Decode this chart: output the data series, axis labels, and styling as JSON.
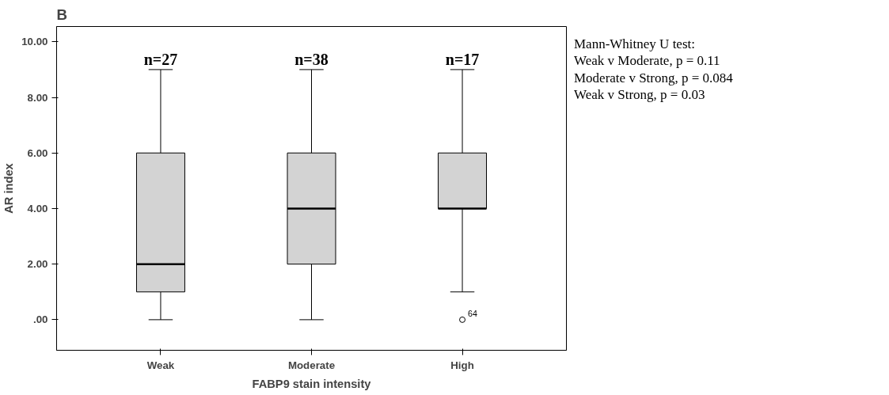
{
  "chart_data": {
    "type": "box",
    "title": "B",
    "xlabel": "FABP9 stain intensity",
    "ylabel": "AR index",
    "categories": [
      "Weak",
      "Moderate",
      "High"
    ],
    "boxes": [
      {
        "low": 0,
        "q1": 1,
        "median": 2,
        "q3": 6,
        "high": 9
      },
      {
        "low": 0,
        "q1": 2,
        "median": 4,
        "q3": 6,
        "high": 9
      },
      {
        "low": 1,
        "q1": 4,
        "median": 4,
        "q3": 6,
        "high": 9,
        "outliers": [
          0
        ]
      }
    ],
    "color": "#d3d3d3",
    "ylim": [
      -1.1,
      10.55
    ],
    "yticks": [
      {
        "value": 0,
        "label": ".00"
      },
      {
        "value": 2,
        "label": "2.00"
      },
      {
        "value": 4,
        "label": "4.00"
      },
      {
        "value": 6,
        "label": "6.00"
      },
      {
        "value": 8,
        "label": "8.00"
      },
      {
        "value": 10,
        "label": "10.00"
      }
    ],
    "grid": false,
    "annotations": [
      "n=27",
      "n=38",
      "n=17",
      "64",
      "Mann-Whitney U test:",
      "Weak v Moderate, p = 0.11",
      "Moderate v Strong, p = 0.084",
      "Weak v Strong, p = 0.03"
    ]
  }
}
